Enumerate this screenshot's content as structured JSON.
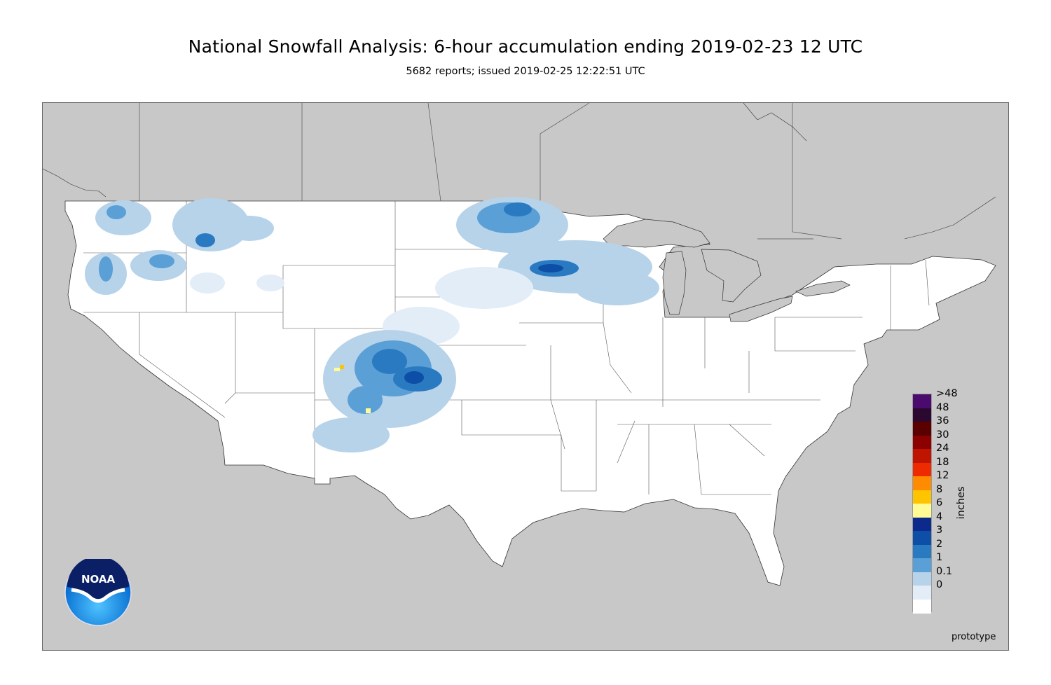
{
  "title": "National Snowfall Analysis: 6-hour accumulation ending 2019-02-23 12 UTC",
  "subtitle": "5682 reports; issued 2019-02-25 12:22:51 UTC",
  "map": {
    "region": "Contiguous United States",
    "land_outside_color": "#c8c8c8",
    "us_land_color": "#ffffff"
  },
  "legend": {
    "units": "inches",
    "bins": [
      {
        "label": ">48",
        "color": "#4b0a6e"
      },
      {
        "label": "48",
        "color": "#2b0830"
      },
      {
        "label": "36",
        "color": "#5a0000"
      },
      {
        "label": "30",
        "color": "#8c0000"
      },
      {
        "label": "24",
        "color": "#be1400"
      },
      {
        "label": "18",
        "color": "#ee2a00"
      },
      {
        "label": "12",
        "color": "#ff8c00"
      },
      {
        "label": "8",
        "color": "#ffc400"
      },
      {
        "label": "6",
        "color": "#fffc96"
      },
      {
        "label": "4",
        "color": "#0c2a8c"
      },
      {
        "label": "3",
        "color": "#0d4ea6"
      },
      {
        "label": "2",
        "color": "#2a7ac2"
      },
      {
        "label": "1",
        "color": "#5a9fd6"
      },
      {
        "label": "0.1",
        "color": "#b7d3ea"
      },
      {
        "label": "0",
        "color": "#e3edf7"
      },
      {
        "label": "",
        "color": "#ffffff"
      }
    ]
  },
  "logo": {
    "text": "NOAA",
    "icon": "noaa-logo-icon"
  },
  "footer_note": "prototype"
}
